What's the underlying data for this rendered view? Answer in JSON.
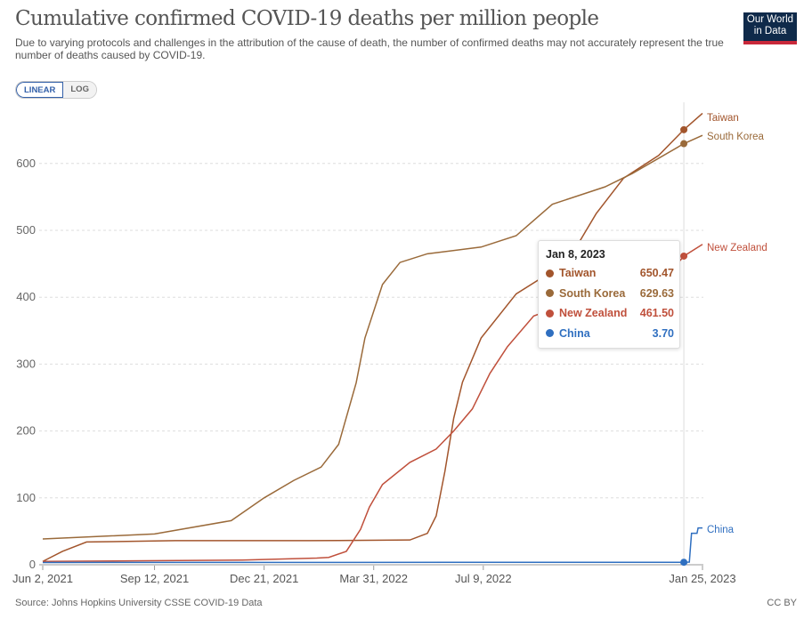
{
  "header": {
    "title": "Cumulative confirmed COVID-19 deaths per million people",
    "subtitle": "Due to varying protocols and challenges in the attribution of the cause of death, the number of confirmed deaths may not accurately represent the true number of deaths caused by COVID-19.",
    "logo": "Our World in Data"
  },
  "controls": {
    "linear": "LINEAR",
    "log": "LOG",
    "selected": "LINEAR"
  },
  "footer": {
    "source": "Source: Johns Hopkins University CSSE COVID-19 Data",
    "license": "CC BY"
  },
  "tooltip": {
    "date": "Jan 8, 2023",
    "rows": [
      {
        "name": "Taiwan",
        "value": "650.47",
        "color": "#a2552c"
      },
      {
        "name": "South Korea",
        "value": "629.63",
        "color": "#9a6a3a"
      },
      {
        "name": "New Zealand",
        "value": "461.50",
        "color": "#c0503c"
      },
      {
        "name": "China",
        "value": "3.70",
        "color": "#2f6fc0"
      }
    ]
  },
  "chart_data": {
    "type": "line",
    "xlabel": "",
    "ylabel": "",
    "x_ticks": [
      "2021-06-02",
      "2021-09-12",
      "2021-12-21",
      "2022-03-31",
      "2022-07-09",
      "2023-01-25"
    ],
    "x_tick_labels": [
      "Jun 2, 2021",
      "Sep 12, 2021",
      "Dec 21, 2021",
      "Mar 31, 2022",
      "Jul 9, 2022",
      "Jan 25, 2023"
    ],
    "xlim": [
      "2021-06-02",
      "2023-01-25"
    ],
    "y_ticks": [
      0,
      100,
      200,
      300,
      400,
      500,
      600
    ],
    "ylim": [
      0,
      680
    ],
    "grid": "horizontal dashed",
    "hover_date": "2023-01-08",
    "series": [
      {
        "name": "Taiwan",
        "color": "#a2552c",
        "points": [
          [
            "2021-06-02",
            5
          ],
          [
            "2021-06-20",
            20
          ],
          [
            "2021-07-12",
            34
          ],
          [
            "2021-10-01",
            36
          ],
          [
            "2022-02-01",
            36
          ],
          [
            "2022-05-03",
            37
          ],
          [
            "2022-05-19",
            47
          ],
          [
            "2022-05-27",
            73
          ],
          [
            "2022-06-04",
            140
          ],
          [
            "2022-06-12",
            219
          ],
          [
            "2022-06-20",
            273
          ],
          [
            "2022-07-07",
            339
          ],
          [
            "2022-08-08",
            405
          ],
          [
            "2022-09-10",
            439
          ],
          [
            "2022-09-26",
            459
          ],
          [
            "2022-10-20",
            525
          ],
          [
            "2022-11-14",
            578
          ],
          [
            "2022-12-16",
            612
          ],
          [
            "2023-01-08",
            650.47
          ],
          [
            "2023-01-25",
            675
          ]
        ]
      },
      {
        "name": "South Korea",
        "color": "#9a6a3a",
        "points": [
          [
            "2021-06-02",
            38.6
          ],
          [
            "2021-09-12",
            46
          ],
          [
            "2021-11-21",
            66
          ],
          [
            "2021-12-21",
            100
          ],
          [
            "2022-01-17",
            126
          ],
          [
            "2022-02-11",
            146
          ],
          [
            "2022-02-27",
            180
          ],
          [
            "2022-03-15",
            272
          ],
          [
            "2022-03-23",
            339
          ],
          [
            "2022-04-08",
            419
          ],
          [
            "2022-04-24",
            452
          ],
          [
            "2022-05-19",
            465
          ],
          [
            "2022-07-07",
            475
          ],
          [
            "2022-08-08",
            492
          ],
          [
            "2022-09-10",
            539
          ],
          [
            "2022-10-28",
            565
          ],
          [
            "2022-11-22",
            585
          ],
          [
            "2023-01-08",
            629.63
          ],
          [
            "2023-01-25",
            642
          ]
        ]
      },
      {
        "name": "New Zealand",
        "color": "#c0503c",
        "points": [
          [
            "2021-06-02",
            5
          ],
          [
            "2021-12-01",
            7
          ],
          [
            "2022-02-07",
            10
          ],
          [
            "2022-02-18",
            11
          ],
          [
            "2022-03-06",
            20
          ],
          [
            "2022-03-19",
            53
          ],
          [
            "2022-03-27",
            86
          ],
          [
            "2022-04-08",
            120
          ],
          [
            "2022-05-03",
            153
          ],
          [
            "2022-05-27",
            173
          ],
          [
            "2022-06-12",
            200
          ],
          [
            "2022-06-29",
            233
          ],
          [
            "2022-07-15",
            286
          ],
          [
            "2022-07-31",
            326
          ],
          [
            "2022-08-24",
            372
          ],
          [
            "2023-01-02",
            450
          ],
          [
            "2023-01-08",
            461.5
          ],
          [
            "2023-01-25",
            479
          ]
        ]
      },
      {
        "name": "China",
        "color": "#2f6fc0",
        "points": [
          [
            "2021-06-02",
            3.4
          ],
          [
            "2023-01-08",
            3.7
          ],
          [
            "2023-01-13",
            4
          ],
          [
            "2023-01-15",
            47
          ],
          [
            "2023-01-20",
            47
          ],
          [
            "2023-01-21",
            55
          ],
          [
            "2023-01-25",
            55
          ]
        ]
      }
    ]
  }
}
